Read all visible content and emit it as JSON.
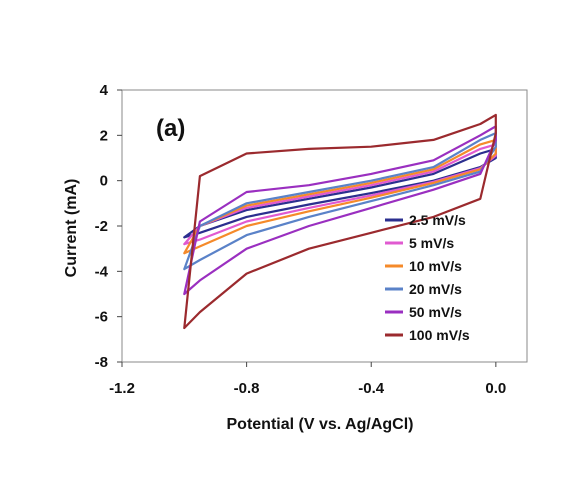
{
  "chart_data": {
    "type": "line",
    "panel_label": "(a)",
    "xlabel": "Potential (V vs. Ag/AgCl)",
    "ylabel": "Current (mA)",
    "xlim": [
      -1.2,
      0.1
    ],
    "ylim": [
      -8,
      4
    ],
    "xticks": [
      "-1.2",
      "-0.8",
      "-0.4",
      "0.0"
    ],
    "xtick_values": [
      -1.2,
      -0.8,
      -0.4,
      0.0
    ],
    "yticks": [
      "4",
      "2",
      "0",
      "-2",
      "-4",
      "-6",
      "-8"
    ],
    "ytick_values": [
      4,
      2,
      0,
      -2,
      -4,
      -6,
      -8
    ],
    "grid": false,
    "legend_position": "right",
    "series": [
      {
        "name": "2.5 mV/s",
        "color": "#2b2f8f",
        "x": [
          -1.0,
          -0.95,
          -0.8,
          -0.6,
          -0.4,
          -0.2,
          -0.05,
          0.0,
          0.0,
          -0.05,
          -0.2,
          -0.4,
          -0.6,
          -0.8,
          -0.95,
          -1.0
        ],
        "y": [
          -2.5,
          -2.3,
          -1.6,
          -1.05,
          -0.55,
          0.0,
          0.6,
          1.0,
          1.4,
          1.2,
          0.3,
          -0.3,
          -0.8,
          -1.3,
          -2.0,
          -2.5
        ]
      },
      {
        "name": "5 mV/s",
        "color": "#e05ad0",
        "x": [
          -1.0,
          -0.95,
          -0.8,
          -0.6,
          -0.4,
          -0.2,
          -0.05,
          0.0,
          0.0,
          -0.05,
          -0.2,
          -0.4,
          -0.6,
          -0.8,
          -0.95,
          -1.0
        ],
        "y": [
          -2.8,
          -2.6,
          -1.8,
          -1.2,
          -0.65,
          -0.05,
          0.55,
          1.1,
          1.6,
          1.4,
          0.4,
          -0.2,
          -0.7,
          -1.2,
          -2.0,
          -2.8
        ]
      },
      {
        "name": "10 mV/s",
        "color": "#f58a2a",
        "x": [
          -1.0,
          -0.95,
          -0.8,
          -0.6,
          -0.4,
          -0.2,
          -0.05,
          0.0,
          0.0,
          -0.05,
          -0.2,
          -0.4,
          -0.6,
          -0.8,
          -0.95,
          -1.0
        ],
        "y": [
          -3.2,
          -2.9,
          -2.0,
          -1.35,
          -0.75,
          -0.1,
          0.5,
          1.2,
          1.8,
          1.6,
          0.5,
          -0.1,
          -0.6,
          -1.1,
          -2.0,
          -3.2
        ]
      },
      {
        "name": "20 mV/s",
        "color": "#5a82c8",
        "x": [
          -1.0,
          -0.95,
          -0.8,
          -0.6,
          -0.4,
          -0.2,
          -0.05,
          0.0,
          0.0,
          -0.05,
          -0.2,
          -0.4,
          -0.6,
          -0.8,
          -0.95,
          -1.0
        ],
        "y": [
          -3.9,
          -3.5,
          -2.4,
          -1.6,
          -0.9,
          -0.2,
          0.4,
          1.5,
          2.1,
          1.8,
          0.6,
          0.0,
          -0.5,
          -1.0,
          -2.0,
          -3.9
        ]
      },
      {
        "name": "50 mV/s",
        "color": "#9a2fc0",
        "x": [
          -1.0,
          -0.95,
          -0.8,
          -0.6,
          -0.4,
          -0.2,
          -0.05,
          0.0,
          0.0,
          -0.05,
          -0.2,
          -0.4,
          -0.6,
          -0.8,
          -0.95,
          -1.0
        ],
        "y": [
          -5.0,
          -4.4,
          -3.0,
          -2.0,
          -1.2,
          -0.4,
          0.3,
          1.8,
          2.4,
          2.0,
          0.9,
          0.3,
          -0.2,
          -0.5,
          -1.8,
          -5.0
        ]
      },
      {
        "name": "100 mV/s",
        "color": "#9b2a2e",
        "x": [
          -1.0,
          -0.95,
          -0.8,
          -0.6,
          -0.4,
          -0.2,
          -0.05,
          0.0,
          0.0,
          -0.05,
          -0.2,
          -0.4,
          -0.6,
          -0.8,
          -0.95,
          -1.0
        ],
        "y": [
          -6.5,
          -5.8,
          -4.1,
          -3.0,
          -2.3,
          -1.6,
          -0.8,
          2.1,
          2.9,
          2.5,
          1.8,
          1.5,
          1.4,
          1.2,
          0.2,
          -6.5
        ]
      }
    ]
  }
}
